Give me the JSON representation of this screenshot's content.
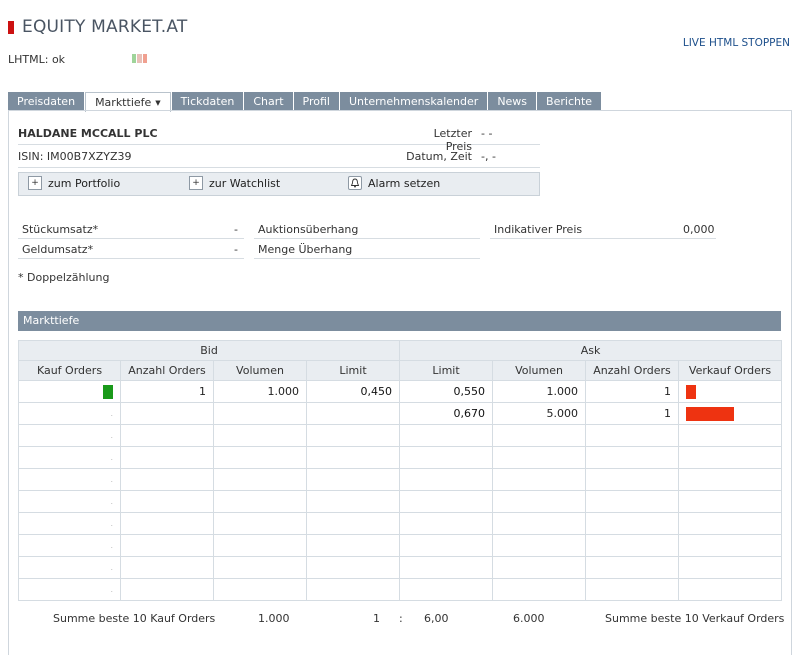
{
  "header": {
    "title": "EQUITY MARKET.AT",
    "live_stop": "LIVE HTML STOPPEN",
    "lhtml_status": "LHTML: ok",
    "indicator_colors": [
      "#9fd49a",
      "#e8c0b8",
      "#f0a090"
    ]
  },
  "tabs": [
    {
      "label": "Preisdaten"
    },
    {
      "label": "Markttiefe",
      "caret": "▼"
    },
    {
      "label": "Tickdaten"
    },
    {
      "label": "Chart"
    },
    {
      "label": "Profil"
    },
    {
      "label": "Unternehmenskalender"
    },
    {
      "label": "News"
    },
    {
      "label": "Berichte"
    }
  ],
  "instrument": {
    "name": "HALDANE MCCALL PLC",
    "isin": "ISIN: IM00B7XZYZ39",
    "price_label": "Letzter Preis",
    "price_value": "- -",
    "date_label": "Datum, Zeit",
    "date_value": "-, -"
  },
  "actions": {
    "portfolio": "zum Portfolio",
    "watchlist": "zur Watchlist",
    "alarm": "Alarm setzen"
  },
  "stats": {
    "stueckumsatz_label": "Stückumsatz*",
    "stueckumsatz_value": "-",
    "geldumsatz_label": "Geldumsatz*",
    "geldumsatz_value": "-",
    "auktion_label": "Auktionsüberhang",
    "menge_label": "Menge Überhang",
    "indikativ_label": "Indikativer Preis",
    "indikativ_value": "0,000"
  },
  "footnote": "* Doppelzählung",
  "markttiefe": {
    "title": "Markttiefe",
    "bid_label": "Bid",
    "ask_label": "Ask",
    "columns": [
      "Kauf Orders",
      "Anzahl Orders",
      "Volumen",
      "Limit",
      "Limit",
      "Volumen",
      "Anzahl Orders",
      "Verkauf Orders"
    ],
    "bid_color": "#1a9a1a",
    "ask_color": "#ee3311",
    "rows": [
      {
        "bid_bar": 0.2,
        "bid_count": "1",
        "bid_volume": "1.000",
        "bid_limit": "0,450",
        "ask_limit": "0,550",
        "ask_volume": "1.000",
        "ask_count": "1",
        "ask_bar": 0.2
      },
      {
        "bid_bar": 0,
        "bid_count": "",
        "bid_volume": "",
        "bid_limit": "",
        "ask_limit": "0,670",
        "ask_volume": "5.000",
        "ask_count": "1",
        "ask_bar": 1.0
      },
      {},
      {},
      {},
      {},
      {},
      {},
      {},
      {}
    ],
    "empty_marker": "."
  },
  "summary": {
    "buy_label": "Summe beste  10 Kauf Orders",
    "buy_volume": "1.000",
    "buy_count": "1",
    "ratio_sep": ":",
    "sell_count": "6,00",
    "sell_volume": "6.000",
    "sell_label": "Summe beste  10 Verkauf Orders"
  }
}
